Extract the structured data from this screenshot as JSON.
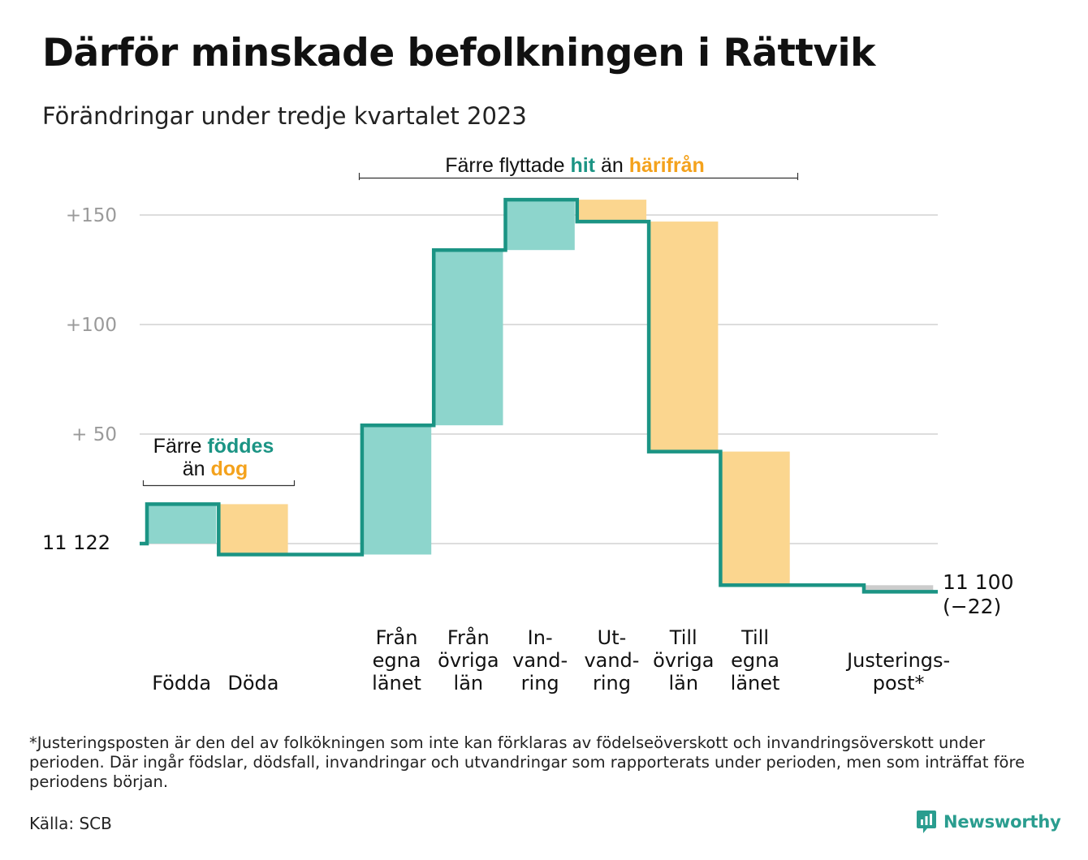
{
  "title": "Därför minskade befolkningen i Rättvik",
  "subtitle": "Förändringar under tredje kvartalet 2023",
  "colors": {
    "in": "#8dd5cc",
    "out": "#fbd68f",
    "adjust": "#cccccc",
    "line": "#1b9484",
    "accent_teal": "#1b9484",
    "accent_orange": "#f4a21c",
    "grid": "#dddddd",
    "tick": "#9a9a9a"
  },
  "annotations": {
    "births": {
      "pre": "Färre",
      "hl1": "föddes",
      "pre2": "än",
      "hl2": "dog"
    },
    "moves": {
      "pre": "Färre flyttade",
      "hl1": "hit",
      "pre2": "än",
      "hl2": "härifrån"
    }
  },
  "chart_data": {
    "type": "waterfall",
    "title": "Därför minskade befolkningen i Rättvik",
    "subtitle": "Förändringar under tredje kvartalet 2023",
    "start_value": 11122,
    "start_label": "11  122",
    "end_value": 11100,
    "end_label": "11 100",
    "end_change_label": "(−22)",
    "ylim": [
      -22,
      158
    ],
    "yticks": [
      {
        "value": 50,
        "label": "+  50"
      },
      {
        "value": 100,
        "label": "+100"
      },
      {
        "value": 150,
        "label": "+150"
      }
    ],
    "grid": true,
    "steps": [
      {
        "category": [
          "Födda"
        ],
        "value": 18,
        "kind": "in"
      },
      {
        "category": [
          "Döda"
        ],
        "value": -23,
        "kind": "out"
      },
      {
        "category": [
          ""
        ],
        "value": 0,
        "kind": "none"
      },
      {
        "category": [
          "Från",
          "egna",
          "länet"
        ],
        "value": 59,
        "kind": "in"
      },
      {
        "category": [
          "Från",
          "övriga",
          "län"
        ],
        "value": 80,
        "kind": "in"
      },
      {
        "category": [
          "In-",
          "vand-",
          "ring"
        ],
        "value": 23,
        "kind": "in"
      },
      {
        "category": [
          "Ut-",
          "vand-",
          "ring"
        ],
        "value": -10,
        "kind": "out"
      },
      {
        "category": [
          "Till",
          "övriga",
          "län"
        ],
        "value": -105,
        "kind": "out"
      },
      {
        "category": [
          "Till",
          "egna",
          "länet"
        ],
        "value": -61,
        "kind": "out"
      },
      {
        "category": [
          ""
        ],
        "value": 0,
        "kind": "none"
      },
      {
        "category": [
          "Justerings-",
          "post*"
        ],
        "value": -3,
        "kind": "adjust"
      }
    ]
  },
  "footnote": "*Justeringsposten är den del av folkökningen som inte kan förklaras av födelseöverskott och invandringsöverskott under perioden. Där ingår födslar, dödsfall, invandringar och utvandringar som rapporterats under perioden, men som inträffat före periodens början.",
  "source": "Källa: SCB",
  "logo": {
    "name": "Newsworthy",
    "icon": "chart-bubble-icon"
  }
}
